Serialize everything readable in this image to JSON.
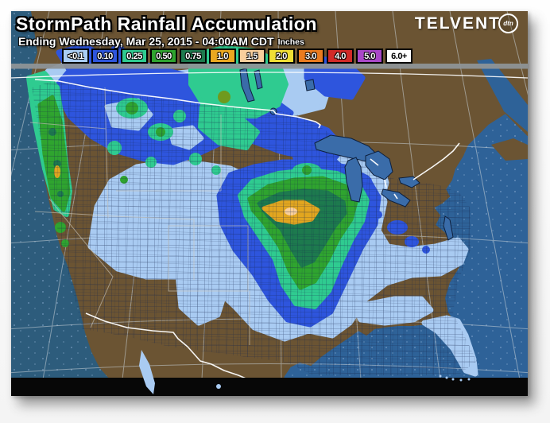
{
  "header": {
    "title": "StormPath Rainfall Accumulation",
    "subtitle": "Ending Wednesday, Mar 25, 2015 - 04:00AM CDT",
    "units_label": "Inches",
    "brand": {
      "name": "TELVENT",
      "badge": "dtn"
    }
  },
  "legend": {
    "items": [
      {
        "label": "<0.1",
        "color": "#aacdf4",
        "text": "#ffffff"
      },
      {
        "label": "0.10",
        "color": "#2e55dd",
        "text": "#ffffff"
      },
      {
        "label": "0.25",
        "color": "#2fcb90",
        "text": "#ffffff"
      },
      {
        "label": "0.50",
        "color": "#2fa42f",
        "text": "#ffffff"
      },
      {
        "label": "0.75",
        "color": "#1d7a4e",
        "text": "#ffffff"
      },
      {
        "label": "1.0",
        "color": "#eaa820",
        "text": "#ffffff"
      },
      {
        "label": "1.5",
        "color": "#f8cf9d",
        "text": "#ffffff"
      },
      {
        "label": "2.0",
        "color": "#f0df35",
        "text": "#ffffff"
      },
      {
        "label": "3.0",
        "color": "#ea7b1f",
        "text": "#ffffff"
      },
      {
        "label": "4.0",
        "color": "#d22a28",
        "text": "#ffffff"
      },
      {
        "label": "5.0",
        "color": "#a948c8",
        "text": "#ffffff"
      },
      {
        "label": "6.0+",
        "color": "#ffffff",
        "text": "#000000"
      }
    ]
  },
  "map": {
    "colors": {
      "ocean_atlantic": "#2e6298",
      "ocean_pacific": "#2d5c7c",
      "land_dry": "#6b5433",
      "lakes": "#3a6ca9",
      "no_data_bar": "#070707",
      "border_international": "#ffffff",
      "grid_lines": "#c9d2d8"
    }
  }
}
